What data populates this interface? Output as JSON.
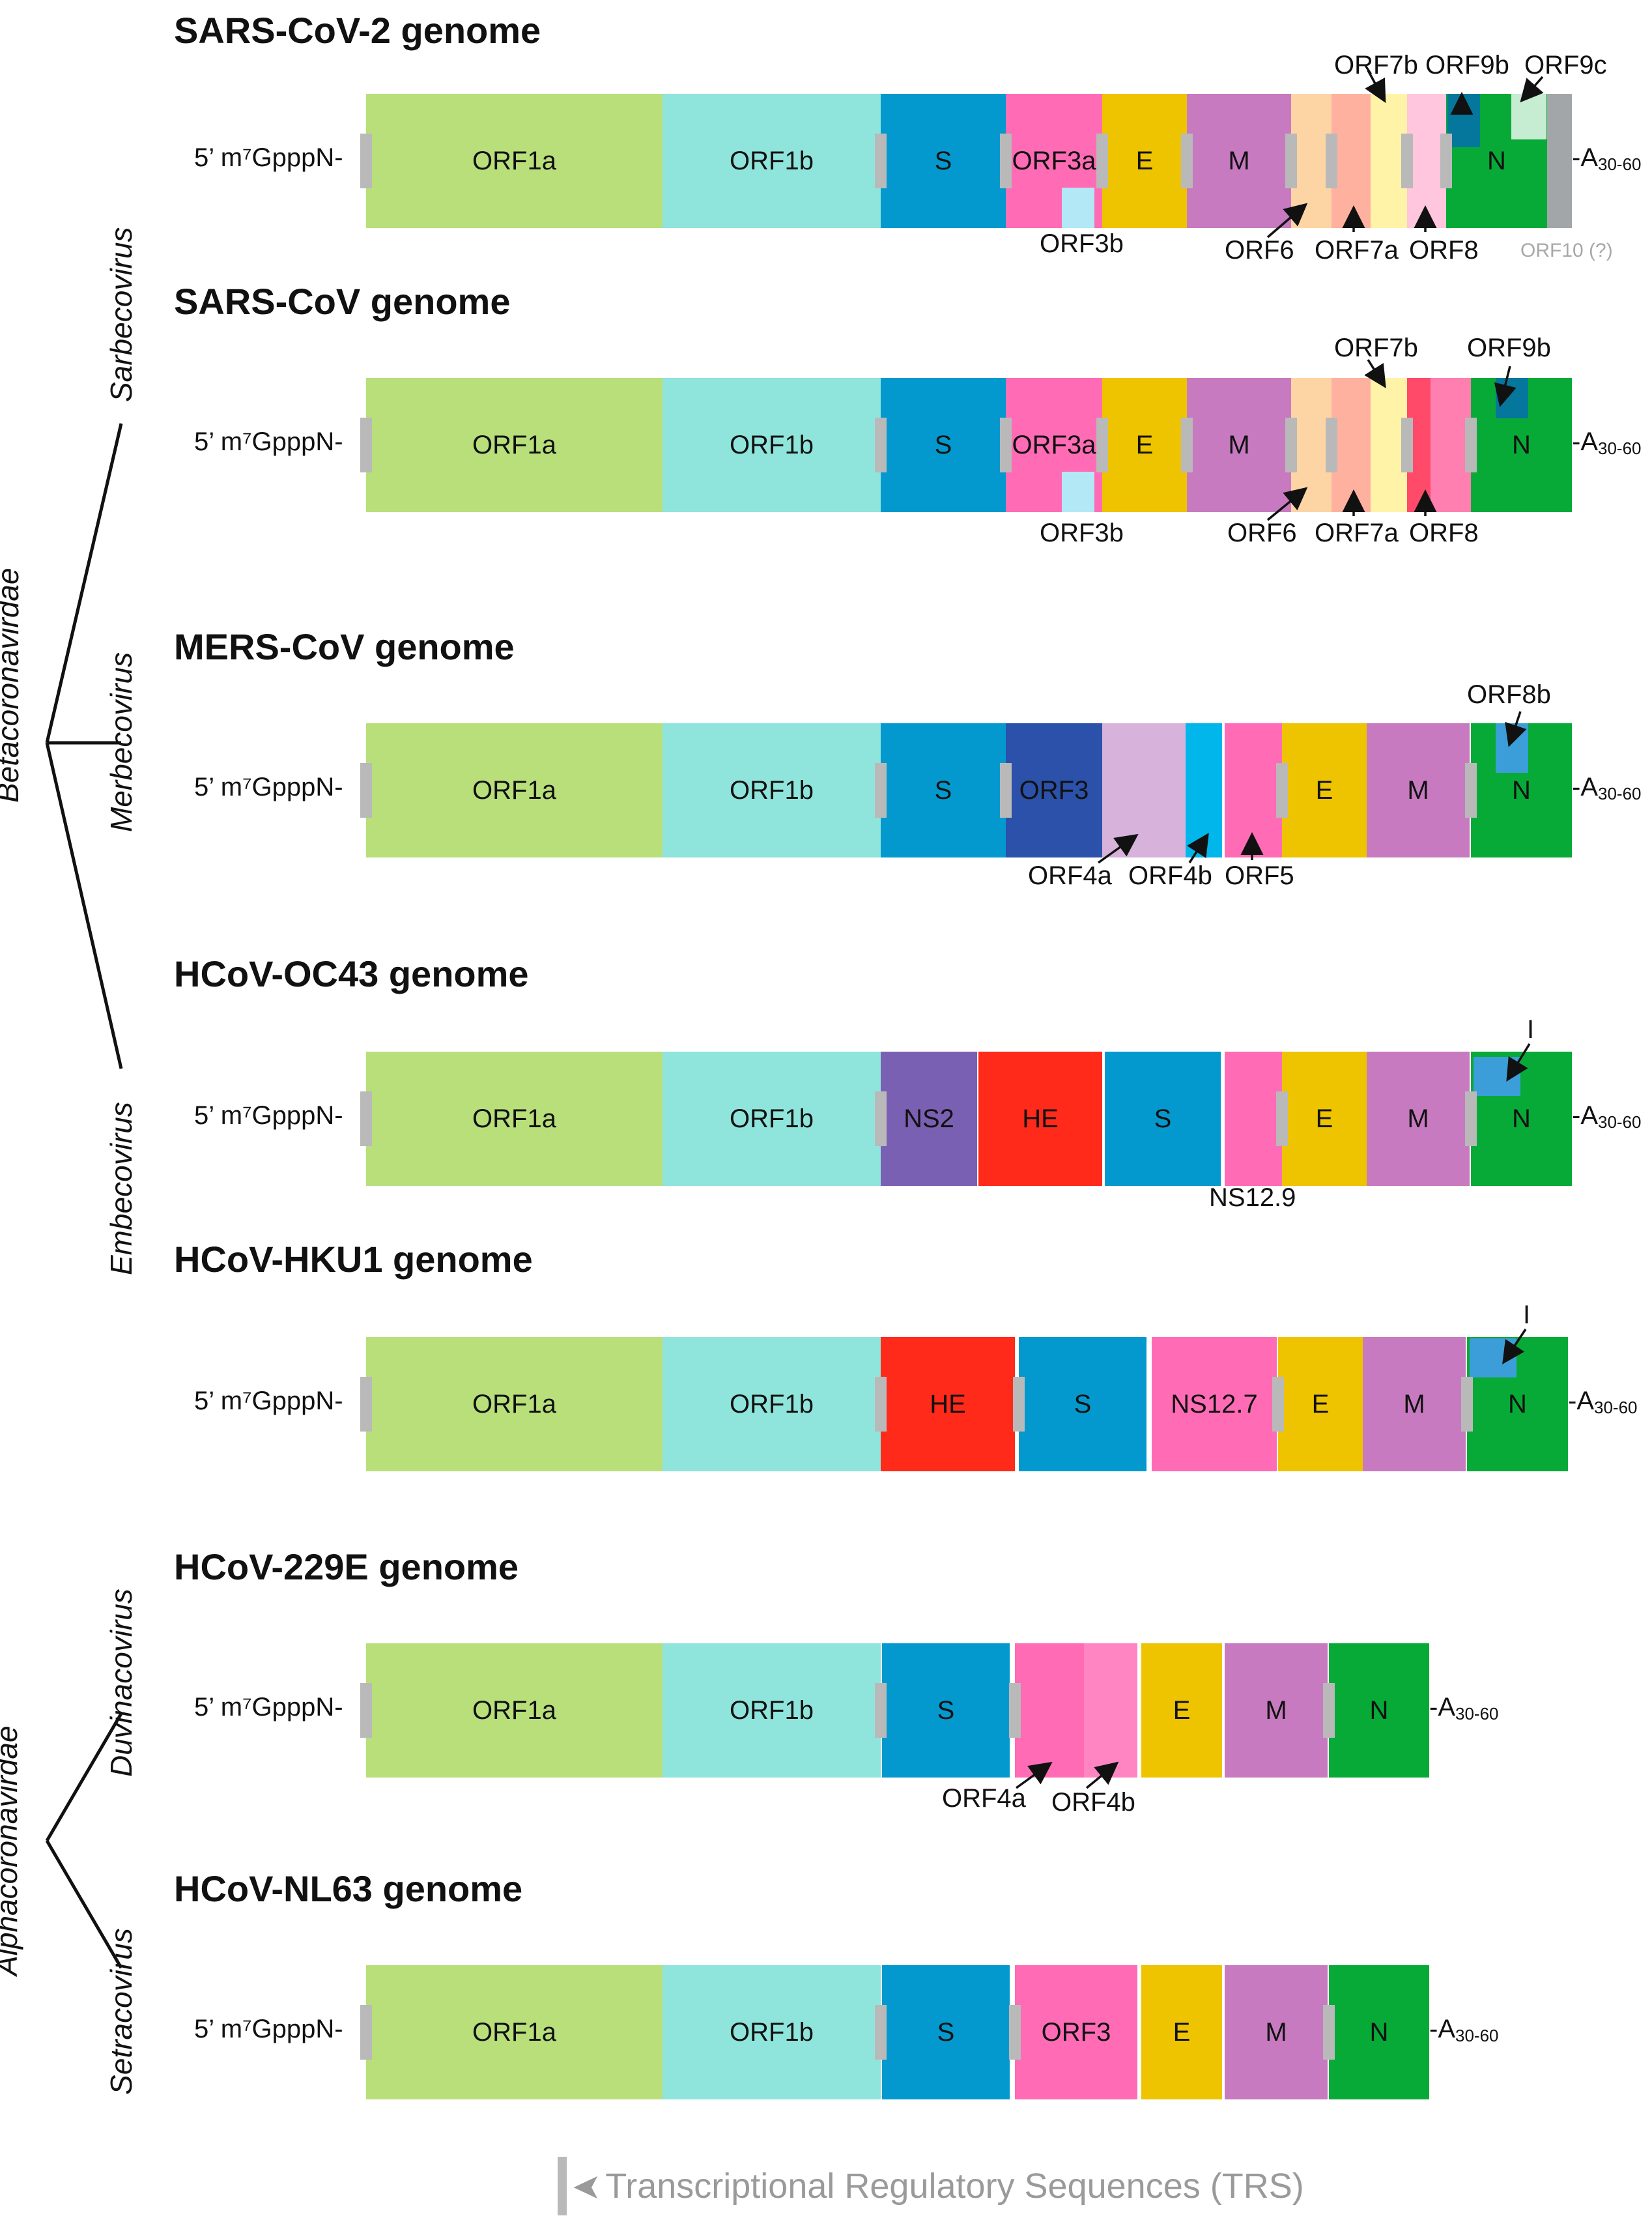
{
  "families": {
    "beta": "Betacoronavirdae",
    "alpha": "Alphacoronavirdae"
  },
  "genera": {
    "sarbe": "Sarbecovirus",
    "merbe": "Merbecovirus",
    "embe": "Embecovirus",
    "duvina": "Duvinacovirus",
    "setra": "Setracovirus"
  },
  "cap_label": "5’ m⁷GpppN-",
  "tail_prefix": "-A",
  "tail_sub": "30-60",
  "genomes": [
    {
      "title": "SARS-CoV-2 genome",
      "labels": [
        "ORF1a",
        "ORF1b",
        "S",
        "ORF3a",
        "E",
        "M",
        "N",
        "ORF7b",
        "ORF9b",
        "ORF9c",
        "ORF3b",
        "ORF6",
        "ORF7a",
        "ORF8",
        "ORF10 (?)"
      ]
    },
    {
      "title": "SARS-CoV genome",
      "labels": [
        "ORF1a",
        "ORF1b",
        "S",
        "ORF3a",
        "E",
        "M",
        "N",
        "ORF7b",
        "ORF9b",
        "ORF3b",
        "ORF6",
        "ORF7a",
        "ORF8"
      ]
    },
    {
      "title": "MERS-CoV genome",
      "labels": [
        "ORF1a",
        "ORF1b",
        "S",
        "ORF3",
        "E",
        "M",
        "N",
        "ORF8b",
        "ORF4a",
        "ORF4b",
        "ORF5"
      ]
    },
    {
      "title": "HCoV-OC43 genome",
      "labels": [
        "ORF1a",
        "ORF1b",
        "NS2",
        "HE",
        "S",
        "E",
        "M",
        "N",
        "I",
        "NS12.9"
      ]
    },
    {
      "title": "HCoV-HKU1 genome",
      "labels": [
        "ORF1a",
        "ORF1b",
        "HE",
        "S",
        "NS12.7",
        "E",
        "M",
        "N",
        "I"
      ]
    },
    {
      "title": "HCoV-229E genome",
      "labels": [
        "ORF1a",
        "ORF1b",
        "S",
        "E",
        "M",
        "N",
        "ORF4a",
        "ORF4b"
      ]
    },
    {
      "title": "HCoV-NL63 genome",
      "labels": [
        "ORF1a",
        "ORF1b",
        "S",
        "ORF3",
        "E",
        "M",
        "N"
      ]
    }
  ],
  "legend": {
    "text": "Transcriptional Regulatory Sequences (TRS)"
  },
  "colors": {
    "orf1a": "#b9df7b",
    "orf1b": "#8fe5dc",
    "s": "#0399ce",
    "pink": "#ff6cb5",
    "e": "#eec300",
    "m": "#c77ac0",
    "n": "#07aa36",
    "trs": "#b9b9b9"
  }
}
